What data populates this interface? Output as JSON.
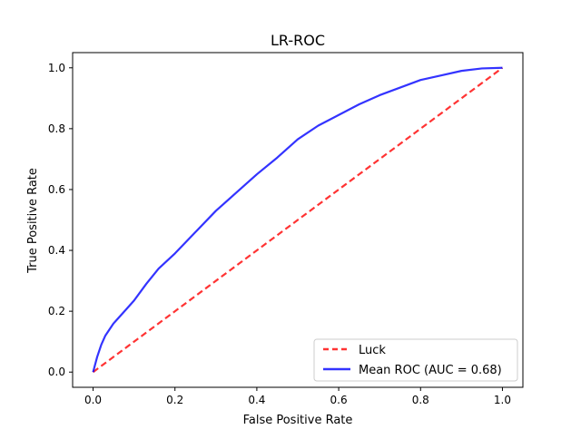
{
  "chart_data": {
    "type": "line",
    "title": "LR-ROC",
    "xlabel": "False Positive Rate",
    "ylabel": "True Positive Rate",
    "xlim": [
      -0.05,
      1.05
    ],
    "ylim": [
      -0.05,
      1.05
    ],
    "xticks": [
      0.0,
      0.2,
      0.4,
      0.6,
      0.8,
      1.0
    ],
    "yticks": [
      0.0,
      0.2,
      0.4,
      0.6,
      0.8,
      1.0
    ],
    "xtick_labels": [
      "0.0",
      "0.2",
      "0.4",
      "0.6",
      "0.8",
      "1.0"
    ],
    "ytick_labels": [
      "0.0",
      "0.2",
      "0.4",
      "0.6",
      "0.8",
      "1.0"
    ],
    "grid": false,
    "legend_position": "lower-right",
    "series": [
      {
        "name": "Luck",
        "color": "#ff0000",
        "style": "dashed",
        "x": [
          0.0,
          1.0
        ],
        "y": [
          0.0,
          1.0
        ]
      },
      {
        "name": "Mean ROC (AUC = 0.68)",
        "color": "#0000ff",
        "style": "solid",
        "x": [
          0.0,
          0.01,
          0.02,
          0.03,
          0.05,
          0.08,
          0.1,
          0.13,
          0.16,
          0.2,
          0.25,
          0.3,
          0.35,
          0.4,
          0.45,
          0.5,
          0.55,
          0.6,
          0.65,
          0.7,
          0.75,
          0.8,
          0.85,
          0.9,
          0.95,
          1.0
        ],
        "y": [
          0.0,
          0.05,
          0.09,
          0.12,
          0.16,
          0.205,
          0.235,
          0.29,
          0.34,
          0.39,
          0.46,
          0.53,
          0.59,
          0.65,
          0.705,
          0.765,
          0.81,
          0.845,
          0.88,
          0.91,
          0.935,
          0.96,
          0.975,
          0.99,
          0.998,
          1.0
        ]
      }
    ]
  }
}
